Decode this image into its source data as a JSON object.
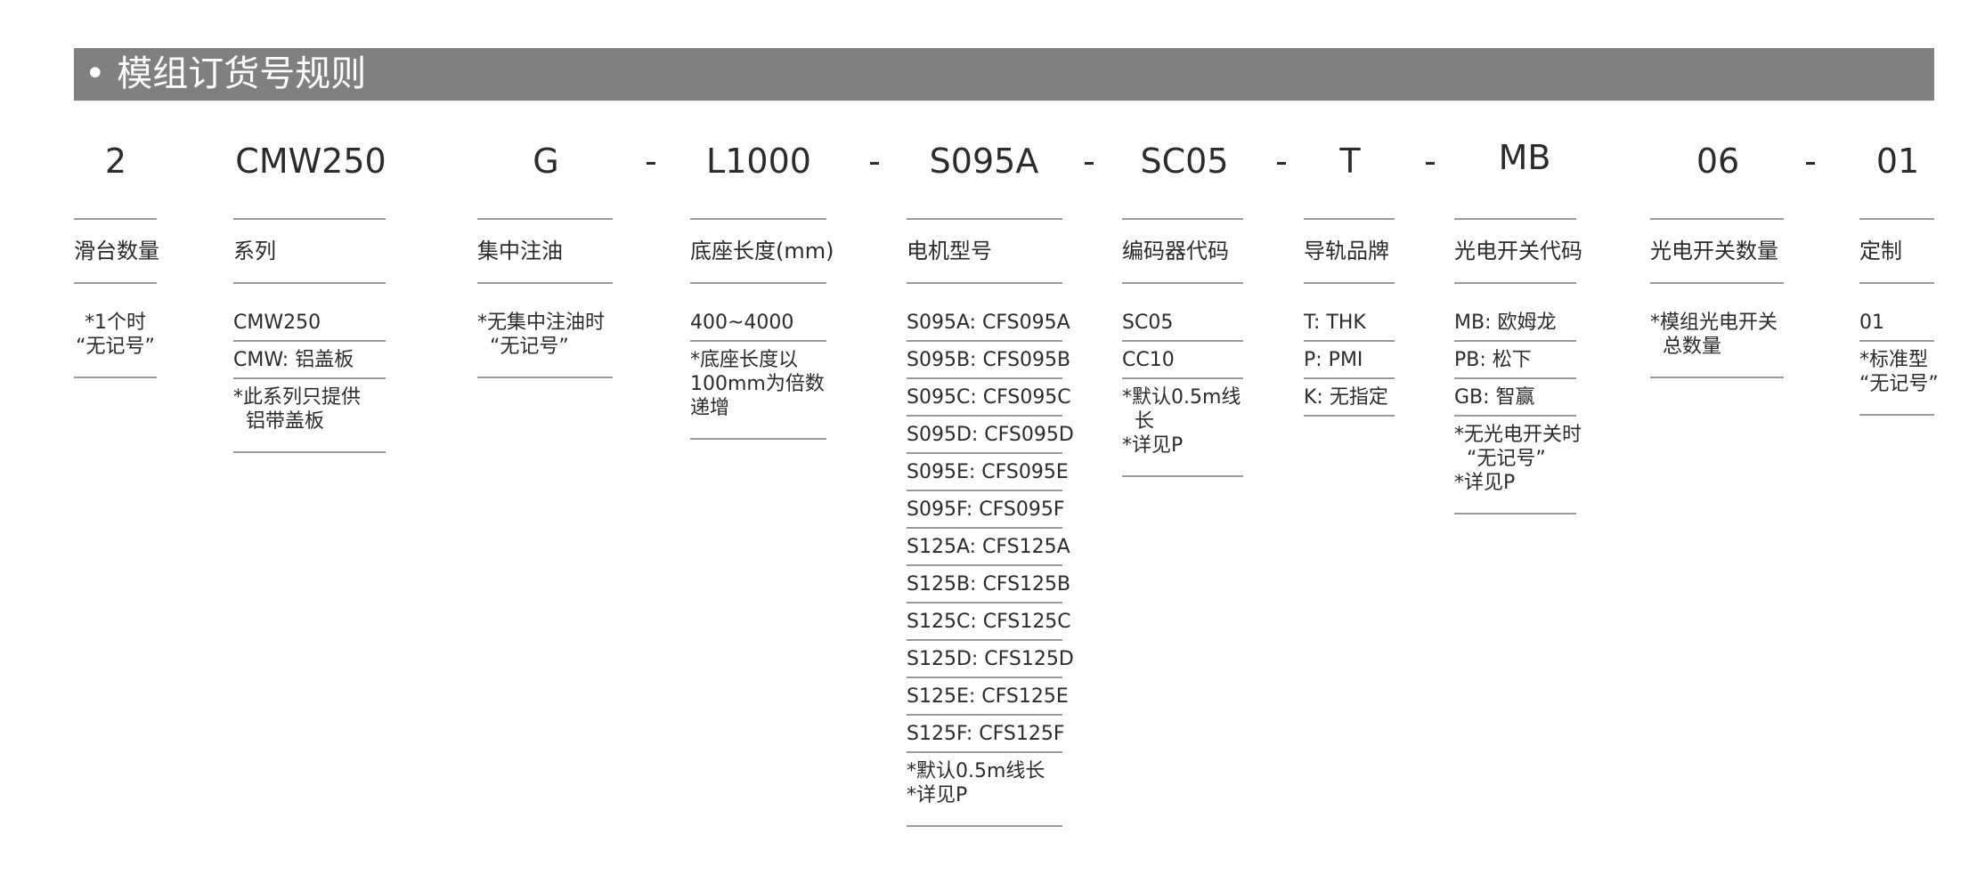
{
  "header": {
    "title": "• 模组订货号规则"
  },
  "codes": [
    {
      "text": "2",
      "pos": 130
    },
    {
      "text": "CMW250",
      "pos": 349
    },
    {
      "text": "G",
      "pos": 613
    },
    {
      "text": "-",
      "pos": 731
    },
    {
      "text": "L1000",
      "pos": 852
    },
    {
      "text": "-",
      "pos": 982
    },
    {
      "text": "S095A",
      "pos": 1105
    },
    {
      "text": "-",
      "pos": 1223
    },
    {
      "text": "SC05",
      "pos": 1330
    },
    {
      "text": "-",
      "pos": 1439
    },
    {
      "text": "T",
      "pos": 1516
    },
    {
      "text": "-",
      "pos": 1606
    },
    {
      "text": "MB",
      "pos": 1712
    },
    {
      "text": "06",
      "pos": 1929
    },
    {
      "text": "-",
      "pos": 2033
    },
    {
      "text": "01",
      "pos": 2131
    }
  ],
  "columns": [
    {
      "label": "滑台数量",
      "cells": [
        {
          "text": "*1个时\n“无记号”",
          "note": true
        }
      ]
    },
    {
      "label": "系列",
      "cells": [
        {
          "text": "CMW250"
        },
        {
          "text": "CMW: 铝盖板"
        },
        {
          "text": "*此系列只提供\n  铝带盖板",
          "note": true
        }
      ]
    },
    {
      "label": "集中注油",
      "cells": [
        {
          "text": "*无集中注油时\n  “无记号”",
          "note": true
        }
      ]
    },
    {
      "label": "底座长度(mm)",
      "cells": [
        {
          "text": "400~4000"
        },
        {
          "text": "*底座长度以\n100mm为倍数\n递增",
          "note": true
        }
      ]
    },
    {
      "label": "电机型号",
      "cells": [
        {
          "text": "S095A: CFS095A"
        },
        {
          "text": "S095B: CFS095B"
        },
        {
          "text": "S095C: CFS095C"
        },
        {
          "text": "S095D: CFS095D"
        },
        {
          "text": "S095E: CFS095E"
        },
        {
          "text": "S095F: CFS095F"
        },
        {
          "text": "S125A: CFS125A"
        },
        {
          "text": "S125B: CFS125B"
        },
        {
          "text": "S125C: CFS125C"
        },
        {
          "text": "S125D: CFS125D"
        },
        {
          "text": "S125E: CFS125E"
        },
        {
          "text": "S125F: CFS125F"
        },
        {
          "text": "*默认0.5m线长\n*详见P",
          "note": true
        }
      ]
    },
    {
      "label": "编码器代码",
      "cells": [
        {
          "text": "SC05"
        },
        {
          "text": "CC10"
        },
        {
          "text": "*默认0.5m线\n  长\n*详见P",
          "note": true
        }
      ]
    },
    {
      "label": "导轨品牌",
      "cells": [
        {
          "text": "T: THK"
        },
        {
          "text": "P: PMI"
        },
        {
          "text": "K: 无指定"
        }
      ]
    },
    {
      "label": "光电开关代码",
      "cells": [
        {
          "text": "MB: 欧姆龙"
        },
        {
          "text": "PB: 松下"
        },
        {
          "text": "GB: 智赢"
        },
        {
          "text": "*无光电开关时\n  “无记号”\n*详见P",
          "note": true
        }
      ]
    },
    {
      "label": "光电开关数量",
      "cells": [
        {
          "text": "*模组光电开关\n  总数量",
          "note": true
        }
      ]
    },
    {
      "label": "定制",
      "cells": [
        {
          "text": "01"
        },
        {
          "text": "*标准型\n“无记号”",
          "note": true
        }
      ]
    }
  ]
}
